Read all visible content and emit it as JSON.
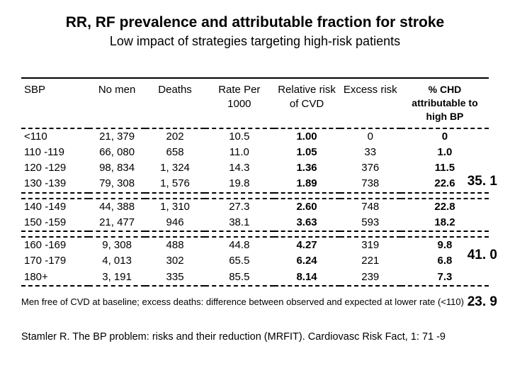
{
  "title": "RR, RF prevalence and attributable fraction for stroke",
  "subtitle": "Low impact of strategies targeting high-risk patients",
  "headers": {
    "sbp": "SBP",
    "nmen": "No men",
    "deaths": "Deaths",
    "rate": "Rate Per 1000",
    "rr": "Relative risk of CVD",
    "excess": "Excess risk",
    "chd": "% CHD attributable to high BP"
  },
  "groups": [
    {
      "af": "35. 1",
      "rows": [
        {
          "sbp": "<110",
          "nmen": "21, 379",
          "deaths": "202",
          "rate": "10.5",
          "rr": "1.00",
          "excess": "0",
          "chd": "0"
        },
        {
          "sbp": "110 -119",
          "nmen": "66, 080",
          "deaths": "658",
          "rate": "11.0",
          "rr": "1.05",
          "excess": "33",
          "chd": "1.0"
        },
        {
          "sbp": "120 -129",
          "nmen": "98, 834",
          "deaths": "1, 324",
          "rate": "14.3",
          "rr": "1.36",
          "excess": "376",
          "chd": "11.5"
        },
        {
          "sbp": "130 -139",
          "nmen": "79, 308",
          "deaths": "1, 576",
          "rate": "19.8",
          "rr": "1.89",
          "excess": "738",
          "chd": "22.6"
        }
      ]
    },
    {
      "af": "41. 0",
      "rows": [
        {
          "sbp": "140 -149",
          "nmen": "44, 388",
          "deaths": "1, 310",
          "rate": "27.3",
          "rr": "2.60",
          "excess": "748",
          "chd": "22.8"
        },
        {
          "sbp": "150 -159",
          "nmen": "21, 477",
          "deaths": "946",
          "rate": "38.1",
          "rr": "3.63",
          "excess": "593",
          "chd": "18.2"
        }
      ]
    },
    {
      "af": "23. 9",
      "rows": [
        {
          "sbp": "160 -169",
          "nmen": "9, 308",
          "deaths": "488",
          "rate": "44.8",
          "rr": "4.27",
          "excess": "319",
          "chd": "9.8"
        },
        {
          "sbp": "170 -179",
          "nmen": "4, 013",
          "deaths": "302",
          "rate": "65.5",
          "rr": "6.24",
          "excess": "221",
          "chd": "6.8"
        },
        {
          "sbp": "180+",
          "nmen": "3, 191",
          "deaths": "335",
          "rate": "85.5",
          "rr": "8.14",
          "excess": "239",
          "chd": "7.3"
        }
      ]
    }
  ],
  "badge_tops": [
    "136px",
    "240px",
    "306px"
  ],
  "footnote": "Men free of CVD at baseline; excess deaths: difference between observed and expected at lower rate (<110)",
  "citation": "Stamler R. The BP problem: risks and their reduction (MRFIT). Cardiovasc Risk Fact, 1: 71 -9"
}
